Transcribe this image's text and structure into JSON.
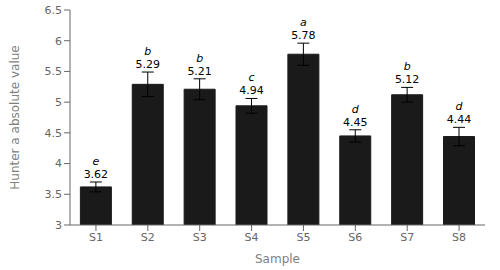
{
  "chart_data": {
    "type": "bar",
    "xlabel": "Sample",
    "ylabel": "Hunter a absolute value",
    "categories": [
      "S1",
      "S2",
      "S3",
      "S4",
      "S5",
      "S6",
      "S7",
      "S8"
    ],
    "values": [
      3.62,
      5.29,
      5.21,
      4.94,
      5.78,
      4.45,
      5.12,
      4.44
    ],
    "errors": [
      0.08,
      0.2,
      0.17,
      0.12,
      0.18,
      0.1,
      0.12,
      0.15
    ],
    "letters": [
      "e",
      "b",
      "b",
      "c",
      "a",
      "d",
      "b",
      "d"
    ],
    "color": "#1a1a1a",
    "ylim": [
      3.0,
      6.5
    ],
    "yticks": [
      3.0,
      3.5,
      4.0,
      4.5,
      5.0,
      5.5,
      6.0,
      6.5
    ],
    "data_labels": true
  }
}
